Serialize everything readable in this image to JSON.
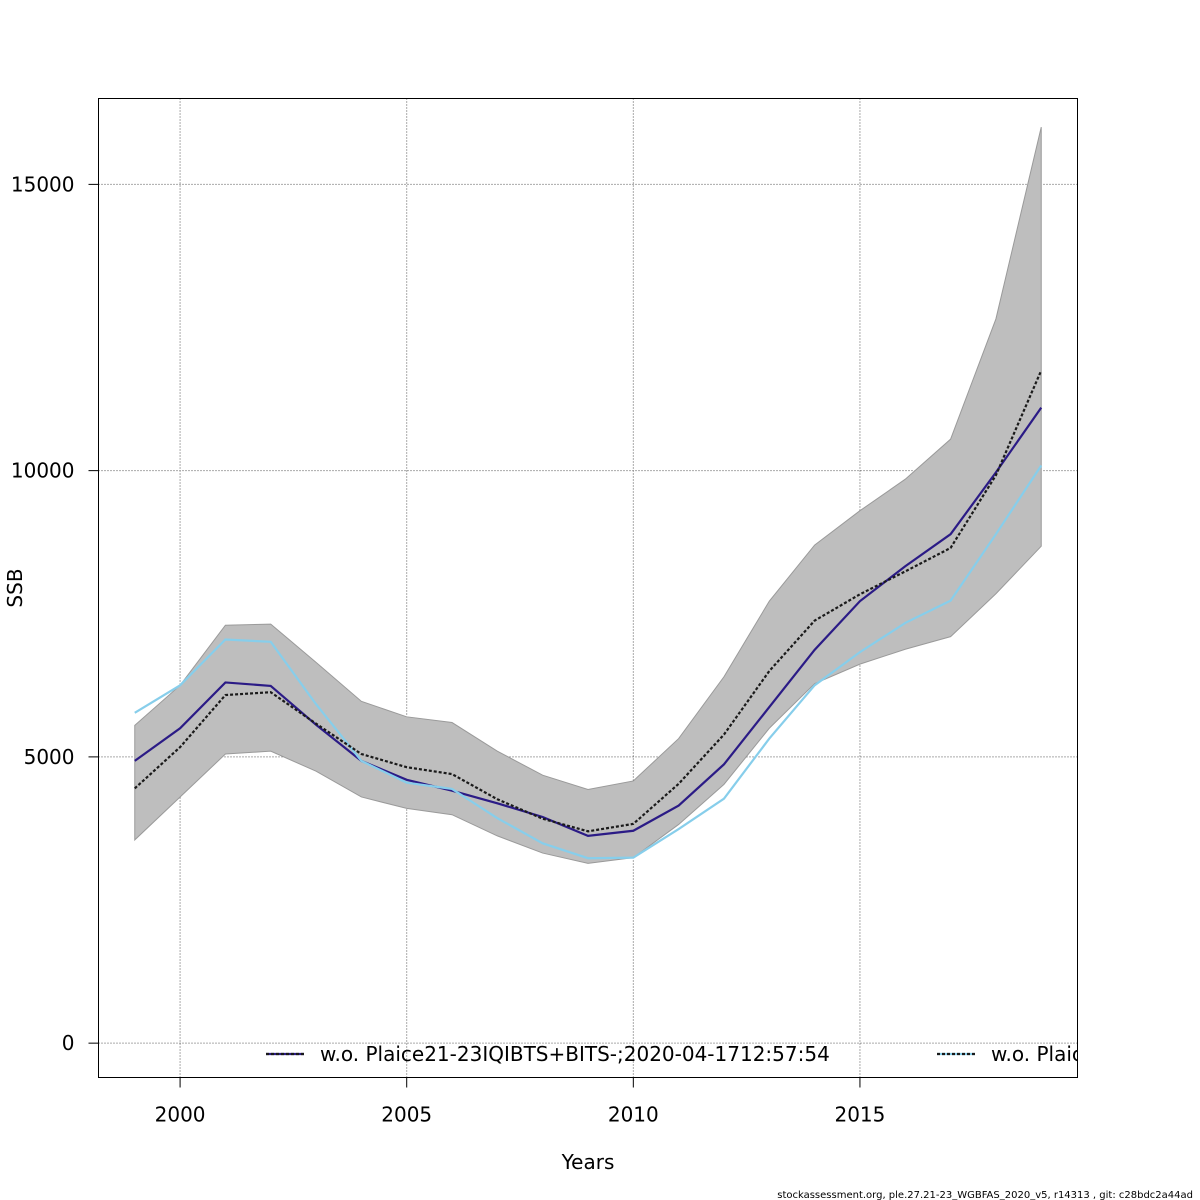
{
  "chart_data": {
    "type": "line",
    "title": "",
    "xlabel": "Years",
    "ylabel": "SSB",
    "xlim": [
      1998.2,
      2019.8
    ],
    "ylim": [
      -600,
      16500
    ],
    "x_ticks": [
      2000,
      2005,
      2010,
      2015
    ],
    "y_ticks": [
      0,
      5000,
      10000,
      15000
    ],
    "grid": true,
    "legend_placement": "bottom",
    "x": [
      1999,
      2000,
      2001,
      2002,
      2003,
      2004,
      2005,
      2006,
      2007,
      2008,
      2009,
      2010,
      2011,
      2012,
      2013,
      2014,
      2015,
      2016,
      2017,
      2018,
      2019
    ],
    "confidence_band": {
      "color": "#bebebe",
      "lower": [
        3550,
        4300,
        5050,
        5100,
        4750,
        4300,
        4100,
        3990,
        3620,
        3320,
        3140,
        3240,
        3820,
        4520,
        5500,
        6280,
        6620,
        6880,
        7100,
        7850,
        8680
      ],
      "upper": [
        5550,
        6250,
        7300,
        7320,
        6650,
        5970,
        5700,
        5600,
        5100,
        4680,
        4430,
        4580,
        5320,
        6400,
        7720,
        8700,
        9300,
        9850,
        10550,
        12650,
        16000
      ]
    },
    "series": [
      {
        "name": "w.o. Plaice21-23IQIBTS+BITS-;2020-04-1712:57:54",
        "color": "#2b1b86",
        "style": "solid",
        "values": [
          4930,
          5500,
          6300,
          6240,
          5560,
          4930,
          4600,
          4410,
          4190,
          3950,
          3620,
          3710,
          4150,
          4870,
          5870,
          6870,
          7720,
          8330,
          8890,
          9970,
          11100
        ]
      },
      {
        "name": "",
        "color": "#1a1a1a",
        "style": "dotted",
        "values": [
          4450,
          5170,
          6080,
          6130,
          5580,
          5050,
          4820,
          4700,
          4260,
          3920,
          3700,
          3830,
          4530,
          5390,
          6500,
          7380,
          7840,
          8240,
          8650,
          9920,
          11750
        ]
      },
      {
        "name": "",
        "color": "#87ceeb",
        "style": "solid",
        "values": [
          5770,
          6250,
          7050,
          7010,
          5920,
          4930,
          4550,
          4440,
          3930,
          3490,
          3230,
          3240,
          3740,
          4270,
          5320,
          6250,
          6830,
          7340,
          7730,
          8890,
          10090
        ]
      }
    ],
    "legend": [
      {
        "label": "w.o. Plaice21-23IQIBTS+BITS-;2020-04-1712:57:54",
        "color": "#2b1b86"
      },
      {
        "label": "w.o. Plaic",
        "color": "#87ceeb"
      }
    ]
  },
  "footer": "stockassessment.org, ple.27.21-23_WGBFAS_2020_v5, r14313 , git: c28bdc2a44ad"
}
